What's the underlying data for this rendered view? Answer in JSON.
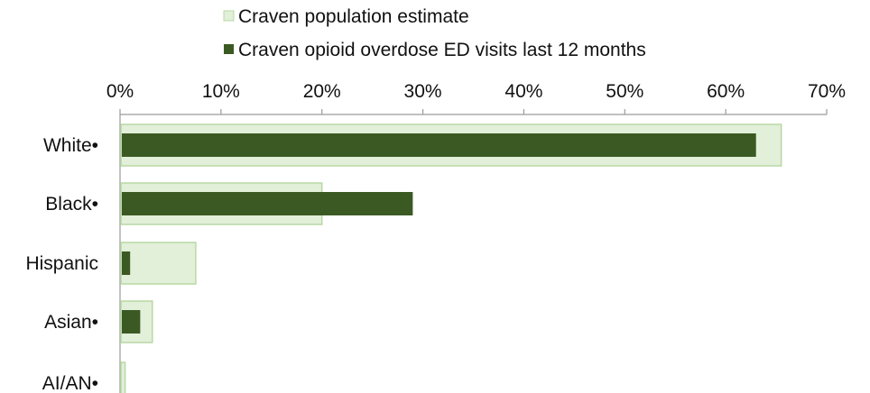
{
  "chart_data": {
    "type": "bar",
    "orientation": "horizontal",
    "categories": [
      "White•",
      "Black•",
      "Hispanic",
      "Asian•",
      "AI/AN•"
    ],
    "series": [
      {
        "name": "Craven population estimate",
        "values": [
          65.5,
          20.0,
          7.5,
          3.2,
          0.5
        ],
        "color": "#e2efd9",
        "stroke": "#b8d9a4"
      },
      {
        "name": "Craven opioid overdose ED visits last 12 months",
        "values": [
          63.0,
          29.0,
          1.0,
          2.0,
          0.0
        ],
        "color": "#3b5a23"
      }
    ],
    "xlim": [
      0,
      70
    ],
    "xticks": [
      "0%",
      "10%",
      "20%",
      "30%",
      "40%",
      "50%",
      "60%",
      "70%"
    ],
    "axis_position": "top",
    "legend_position": "top",
    "grid": false
  }
}
